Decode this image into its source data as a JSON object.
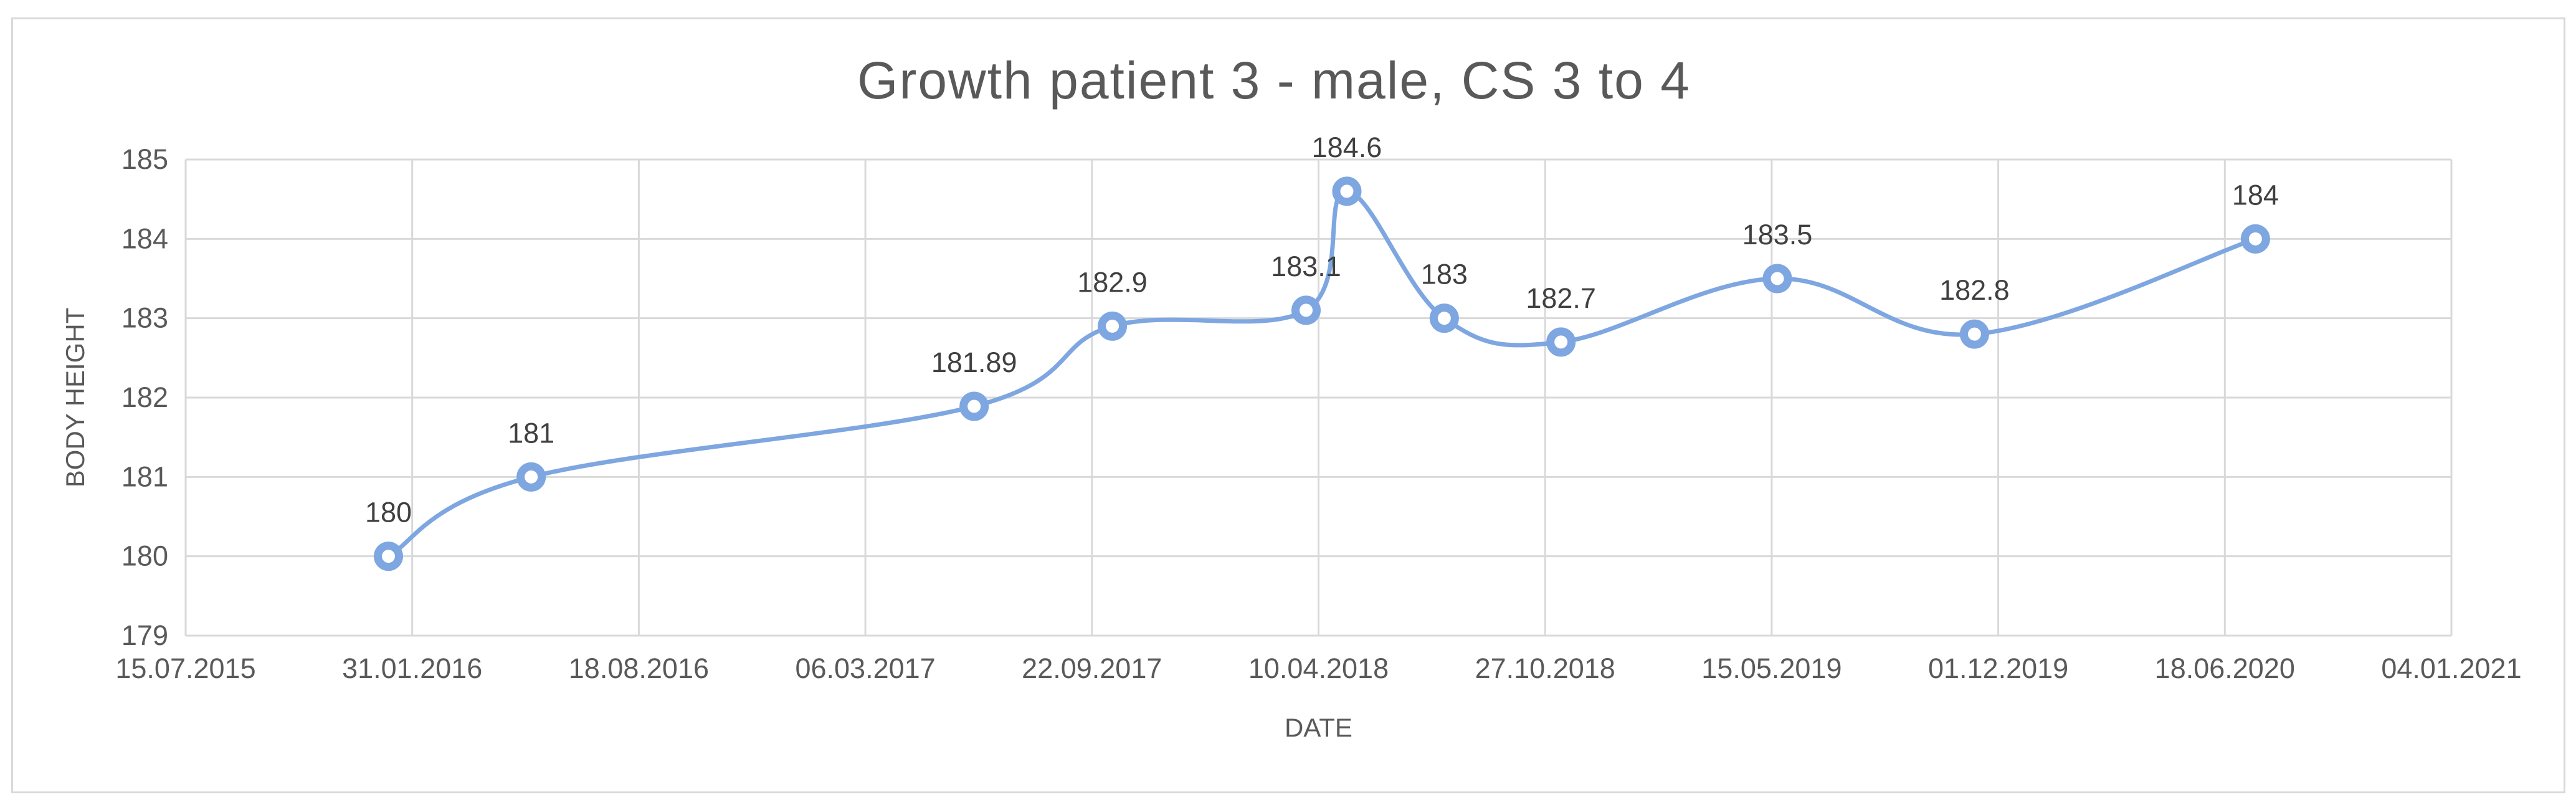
{
  "chart_data": {
    "type": "line",
    "title": "Growth patient 3 - male, CS 3 to 4",
    "xlabel": "DATE",
    "ylabel": "BODY HEIGHT",
    "x_tick_labels": [
      "15.07.2015",
      "31.01.2016",
      "18.08.2016",
      "06.03.2017",
      "22.09.2017",
      "10.04.2018",
      "27.10.2018",
      "15.05.2019",
      "01.12.2019",
      "18.06.2020",
      "04.01.2021"
    ],
    "xlim": [
      "2015-07-15",
      "2021-01-04"
    ],
    "y_tick_labels": [
      "179",
      "180",
      "181",
      "182",
      "183",
      "184",
      "185"
    ],
    "ylim": [
      179,
      185
    ],
    "grid": true,
    "smooth": true,
    "series_color": "#7ea6e0",
    "series": [
      {
        "points": [
          {
            "x": "2016-01-10",
            "y": 180,
            "label": "180"
          },
          {
            "x": "2016-05-15",
            "y": 181,
            "label": "181"
          },
          {
            "x": "2017-06-10",
            "y": 181.89,
            "label": "181.89"
          },
          {
            "x": "2017-10-10",
            "y": 182.9,
            "label": "182.9"
          },
          {
            "x": "2018-03-30",
            "y": 183.1,
            "label": "183.1"
          },
          {
            "x": "2018-05-05",
            "y": 184.6,
            "label": "184.6"
          },
          {
            "x": "2018-07-30",
            "y": 183,
            "label": "183"
          },
          {
            "x": "2018-11-10",
            "y": 182.7,
            "label": "182.7"
          },
          {
            "x": "2019-05-20",
            "y": 183.5,
            "label": "183.5"
          },
          {
            "x": "2019-11-10",
            "y": 182.8,
            "label": "182.8"
          },
          {
            "x": "2020-07-15",
            "y": 184,
            "label": "184"
          }
        ]
      }
    ]
  }
}
